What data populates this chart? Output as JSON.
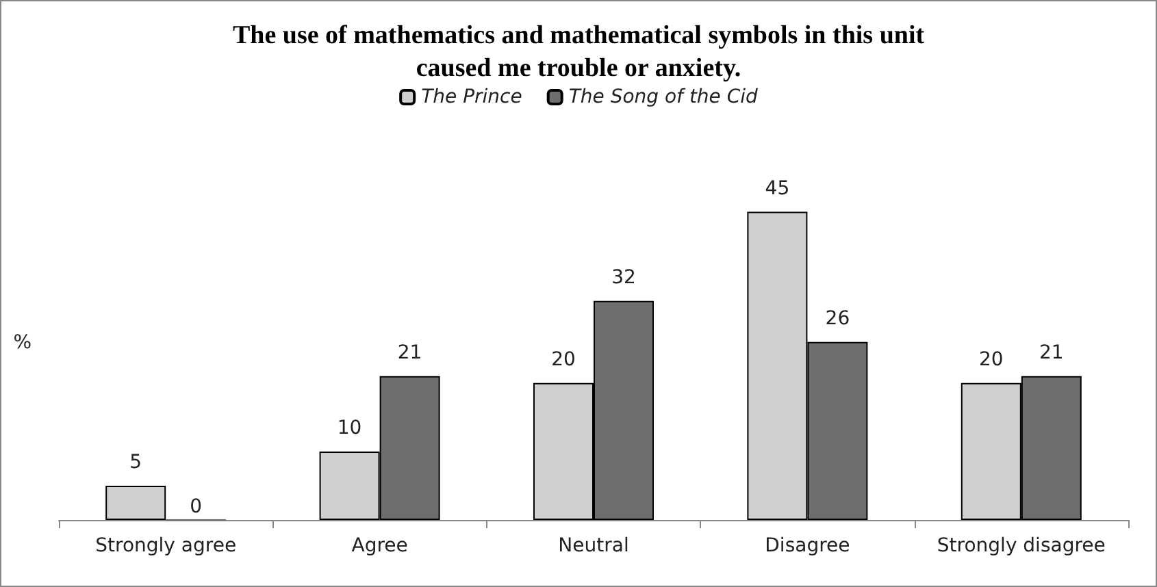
{
  "chart_data": {
    "type": "bar",
    "title": "The use of mathematics and mathematical symbols in this unit\ncaused me trouble or anxiety.",
    "ylabel": "%",
    "categories": [
      "Strongly agree",
      "Agree",
      "Neutral",
      "Disagree",
      "Strongly disagree"
    ],
    "series": [
      {
        "name": "The Prince",
        "color": "#d0d0d0",
        "values": [
          5,
          10,
          20,
          45,
          20
        ]
      },
      {
        "name": "The Song of the Cid",
        "color": "#6e6e6e",
        "values": [
          0,
          21,
          32,
          26,
          21
        ]
      }
    ],
    "data_labels": true,
    "legend": "top",
    "grid": false
  }
}
